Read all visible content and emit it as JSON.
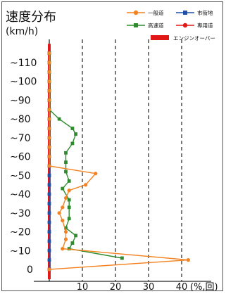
{
  "chart_data": {
    "type": "line",
    "title": "速度分布",
    "ylabel": "(km/h)",
    "xlabel": "",
    "x_unit_label": "(%,回)",
    "xlim": [
      0,
      40
    ],
    "ylim": [
      0,
      120
    ],
    "x_ticks": [
      10,
      20,
      30,
      40
    ],
    "x_tick_labels": [
      "10",
      "20",
      "30",
      "40"
    ],
    "y_ticks": [
      0,
      10,
      20,
      30,
      40,
      50,
      60,
      70,
      80,
      90,
      100,
      110
    ],
    "y_tick_labels": [
      "0",
      "~10",
      "~20",
      "~30",
      "~40",
      "~50",
      "~60",
      "~70",
      "~80",
      "~90",
      "~100",
      "~110"
    ],
    "grid": "vertical dashed",
    "legend_placement": "top-right",
    "series": [
      {
        "name": "一般道",
        "color": "#f58220",
        "marker": "circle",
        "points": [
          [
            0,
            115
          ],
          [
            0,
            110
          ],
          [
            0,
            105
          ],
          [
            0,
            100
          ],
          [
            0,
            95
          ],
          [
            0,
            90
          ],
          [
            0,
            85
          ],
          [
            0,
            80
          ],
          [
            0,
            75
          ],
          [
            0,
            70
          ],
          [
            0,
            65
          ],
          [
            0,
            60
          ],
          [
            0,
            55
          ],
          [
            14,
            51
          ],
          [
            11,
            45
          ],
          [
            6,
            42
          ],
          [
            5,
            38
          ],
          [
            4,
            33
          ],
          [
            3,
            30
          ],
          [
            4,
            26
          ],
          [
            5,
            20
          ],
          [
            5,
            16
          ],
          [
            4,
            11
          ],
          [
            42,
            5
          ],
          [
            0,
            0
          ]
        ]
      },
      {
        "name": "市街地",
        "color": "#1f4fa8",
        "marker": "square",
        "points": [
          [
            0,
            115
          ],
          [
            0,
            110
          ],
          [
            0,
            105
          ],
          [
            0,
            100
          ],
          [
            0,
            95
          ],
          [
            0,
            90
          ],
          [
            0,
            85
          ],
          [
            0,
            80
          ],
          [
            0,
            75
          ],
          [
            0,
            70
          ],
          [
            0,
            65
          ],
          [
            0,
            60
          ],
          [
            0,
            55
          ],
          [
            0,
            50
          ],
          [
            0,
            45
          ],
          [
            0,
            40
          ],
          [
            0,
            35
          ],
          [
            0,
            30
          ],
          [
            0,
            25
          ],
          [
            0,
            20
          ],
          [
            0,
            15
          ],
          [
            0,
            10
          ],
          [
            0,
            5
          ],
          [
            0,
            0
          ]
        ]
      },
      {
        "name": "高速道",
        "color": "#2e8b2e",
        "marker": "square",
        "points": [
          [
            0,
            115
          ],
          [
            0,
            110
          ],
          [
            0,
            105
          ],
          [
            0,
            100
          ],
          [
            0,
            95
          ],
          [
            0,
            90
          ],
          [
            0,
            85
          ],
          [
            3,
            80
          ],
          [
            7,
            75
          ],
          [
            8,
            72
          ],
          [
            7,
            67
          ],
          [
            5,
            62
          ],
          [
            5,
            57
          ],
          [
            5,
            52
          ],
          [
            6,
            47
          ],
          [
            4,
            43
          ],
          [
            6,
            37
          ],
          [
            6,
            33
          ],
          [
            6,
            27
          ],
          [
            5,
            22
          ],
          [
            8,
            18
          ],
          [
            7,
            14
          ],
          [
            6,
            11
          ],
          [
            22,
            6
          ]
        ]
      },
      {
        "name": "エンジンオーバー",
        "color": "#e01818",
        "marker": "none",
        "points": [
          [
            0,
            120
          ],
          [
            0,
            0
          ]
        ]
      }
    ]
  },
  "legend": [
    {
      "label": "一般道",
      "color": "#f58220",
      "marker": "circle"
    },
    {
      "label": "市街地",
      "color": "#1f4fa8",
      "marker": "square"
    },
    {
      "label": "高速道",
      "color": "#2e8b2e",
      "marker": "square"
    },
    {
      "label": "専用道",
      "color": "#e01818",
      "marker": "circle"
    },
    {
      "label": "エンジンオーバー",
      "color": "#e01818",
      "marker": "bar"
    }
  ]
}
